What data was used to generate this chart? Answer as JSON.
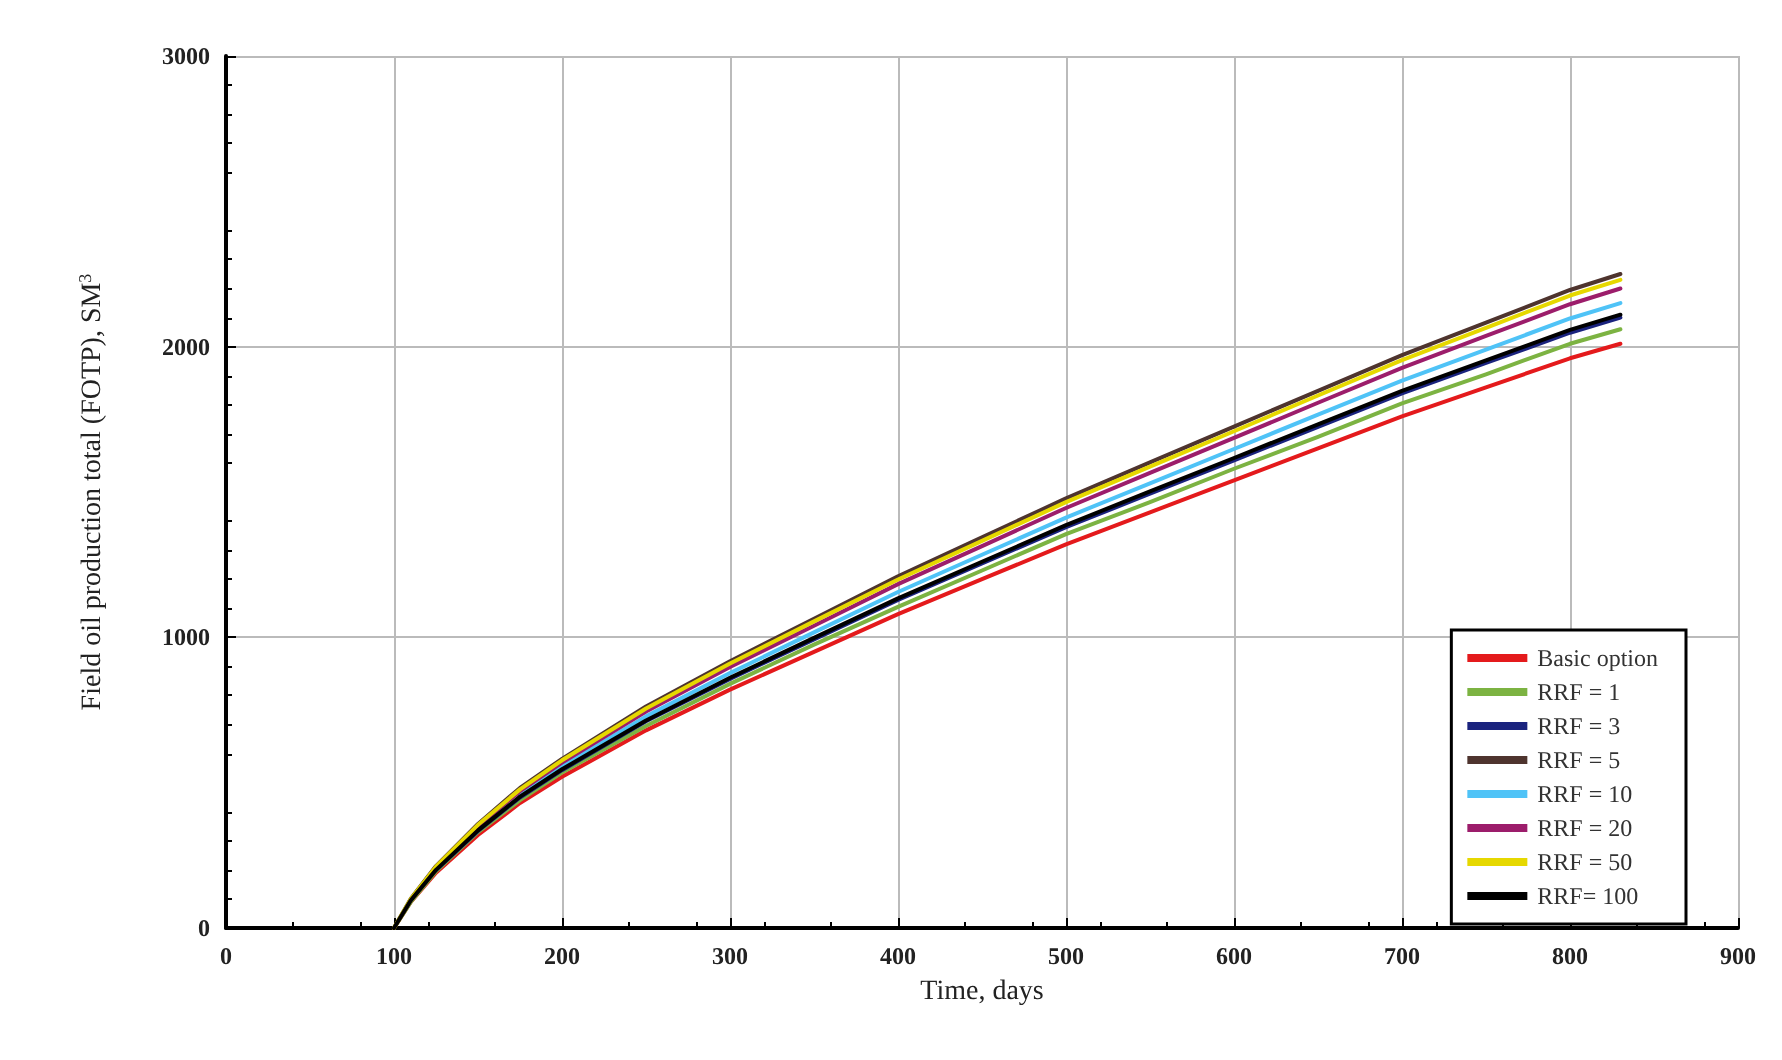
{
  "chart_data": {
    "type": "line",
    "xlabel": "Time, days",
    "ylabel": "Field oil production total (FOTP), SM$^{3}$",
    "x": [
      100,
      110,
      125,
      150,
      175,
      200,
      250,
      300,
      350,
      400,
      450,
      500,
      550,
      600,
      650,
      700,
      750,
      800,
      830
    ],
    "series": [
      {
        "name": "Basic option",
        "color": "#e41a1c",
        "values": [
          0,
          90,
          190,
          320,
          430,
          520,
          680,
          820,
          950,
          1080,
          1200,
          1320,
          1430,
          1540,
          1650,
          1760,
          1860,
          1960,
          2010
        ]
      },
      {
        "name": "RRF = 1",
        "color": "#7cb342",
        "values": [
          0,
          90,
          195,
          330,
          440,
          535,
          695,
          840,
          975,
          1105,
          1230,
          1355,
          1465,
          1580,
          1690,
          1805,
          1905,
          2010,
          2060
        ]
      },
      {
        "name": "RRF = 3",
        "color": "#1a237e",
        "values": [
          null,
          null,
          199,
          334,
          449,
          543,
          711,
          857,
          993,
          1129,
          1254,
          1379,
          1494,
          1609,
          1724,
          1839,
          1944,
          2048,
          2100
        ]
      },
      {
        "name": "RRF = 5",
        "color": "#4e342e",
        "values": [
          0,
          101,
          213,
          358,
          482,
          582,
          762,
          918,
          1064,
          1210,
          1344,
          1478,
          1602,
          1725,
          1848,
          1971,
          2083,
          2195,
          2250
        ]
      },
      {
        "name": "RRF = 10",
        "color": "#4fc3f7",
        "values": [
          null,
          null,
          null,
          null,
          460,
          556,
          728,
          877,
          1017,
          1156,
          1284,
          1412,
          1530,
          1648,
          1766,
          1883,
          1990,
          2097,
          2150
        ]
      },
      {
        "name": "RRF = 20",
        "color": "#9c1d6b",
        "values": [
          null,
          null,
          208,
          350,
          471,
          569,
          745,
          898,
          1040,
          1183,
          1314,
          1445,
          1566,
          1686,
          1807,
          1927,
          2037,
          2146,
          2200
        ]
      },
      {
        "name": "RRF = 50",
        "color": "#e6d800",
        "values": [
          0,
          100,
          211,
          355,
          477,
          577,
          755,
          910,
          1055,
          1199,
          1332,
          1465,
          1587,
          1709,
          1832,
          1954,
          2065,
          2176,
          2230
        ]
      },
      {
        "name": "RRF= 100",
        "color": "#000000",
        "values": [
          0,
          95,
          200,
          336,
          452,
          546,
          714,
          861,
          998,
          1134,
          1260,
          1386,
          1502,
          1617,
          1733,
          1848,
          1953,
          2058,
          2110
        ]
      }
    ],
    "xlim": [
      0,
      900
    ],
    "xticks": [
      0,
      100,
      200,
      300,
      400,
      500,
      600,
      700,
      800,
      900
    ],
    "ylim": [
      0,
      3000
    ],
    "yticks": [
      0,
      1000,
      2000,
      3000
    ],
    "grid": true,
    "legend": "bottom right",
    "marker": "none",
    "line_style": "solid"
  }
}
